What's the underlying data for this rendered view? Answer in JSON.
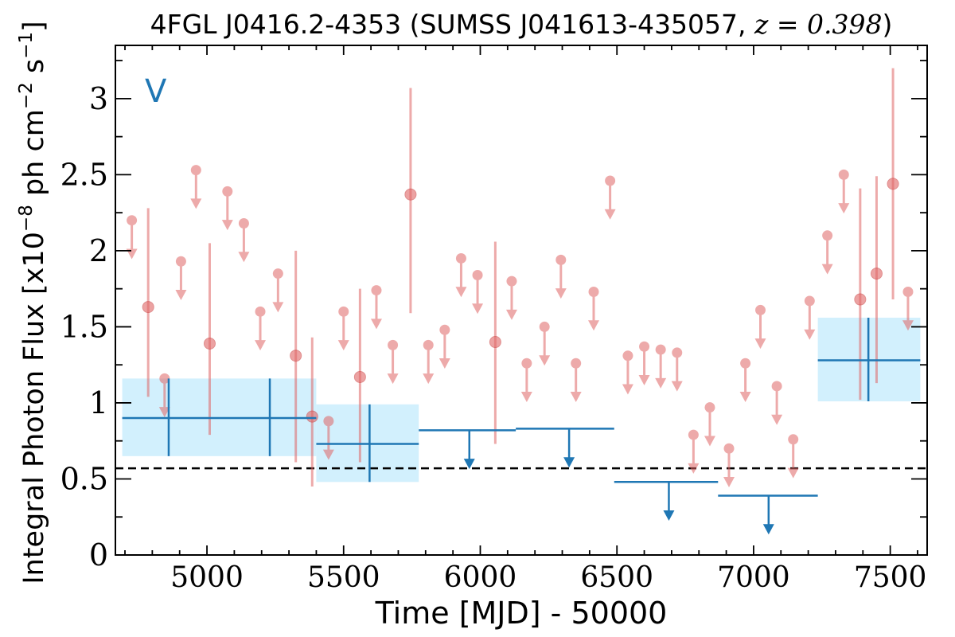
{
  "chart_data": {
    "type": "scatter",
    "title_main": "4FGL J0416.2-4353 (SUMSS J041613-435057, ",
    "title_z": "z = 0.398",
    "title_close": ")",
    "xlabel": "Time [MJD] - 50000",
    "ylabel_pre": "Integral Photon Flux [x10",
    "ylabel_exp1": "−8",
    "ylabel_mid": " ph cm",
    "ylabel_exp2": "−2",
    "ylabel_mid2": " s",
    "ylabel_exp3": "−1",
    "ylabel_post": "]",
    "annotation": "V",
    "xlim": [
      4665,
      7635
    ],
    "ylim": [
      0,
      3.35
    ],
    "xticks": [
      "5000",
      "5500",
      "6000",
      "6500",
      "7000",
      "7500"
    ],
    "yticks": [
      "0",
      "0.5",
      "1",
      "1.5",
      "2",
      "2.5",
      "3"
    ],
    "xtick_values": [
      5000,
      5500,
      6000,
      6500,
      7000,
      7500
    ],
    "ytick_values": [
      0,
      0.5,
      1,
      1.5,
      2,
      2.5,
      3
    ],
    "reference_level": 0.57,
    "colors": {
      "fine_points": "#e06666",
      "bins": "#1f77b4",
      "bin_fill": "#cdeefd",
      "reference": "#000000"
    },
    "fine_detections": [
      {
        "x": 4785,
        "y": 1.63,
        "lo": 1.04,
        "hi": 2.28
      },
      {
        "x": 5010,
        "y": 1.39,
        "lo": 0.79,
        "hi": 2.05
      },
      {
        "x": 5325,
        "y": 1.31,
        "lo": 0.61,
        "hi": 2.0
      },
      {
        "x": 5385,
        "y": 0.91,
        "lo": 0.45,
        "hi": 1.43
      },
      {
        "x": 5560,
        "y": 1.17,
        "lo": 0.61,
        "hi": 1.75
      },
      {
        "x": 5745,
        "y": 2.37,
        "lo": 1.59,
        "hi": 3.07
      },
      {
        "x": 6055,
        "y": 1.4,
        "lo": 0.73,
        "hi": 2.06
      },
      {
        "x": 7390,
        "y": 1.68,
        "lo": 1.02,
        "hi": 2.41
      },
      {
        "x": 7450,
        "y": 1.85,
        "lo": 1.13,
        "hi": 2.49
      },
      {
        "x": 7510,
        "y": 2.44,
        "lo": 1.68,
        "hi": 3.2
      }
    ],
    "fine_upper_limits": [
      {
        "x": 4725,
        "y": 2.2
      },
      {
        "x": 4845,
        "y": 1.16
      },
      {
        "x": 4905,
        "y": 1.93
      },
      {
        "x": 4960,
        "y": 2.53
      },
      {
        "x": 5075,
        "y": 2.39
      },
      {
        "x": 5135,
        "y": 2.18
      },
      {
        "x": 5195,
        "y": 1.6
      },
      {
        "x": 5260,
        "y": 1.85
      },
      {
        "x": 5445,
        "y": 0.88
      },
      {
        "x": 5500,
        "y": 1.6
      },
      {
        "x": 5620,
        "y": 1.74
      },
      {
        "x": 5680,
        "y": 1.38
      },
      {
        "x": 5810,
        "y": 1.38
      },
      {
        "x": 5870,
        "y": 1.48
      },
      {
        "x": 5930,
        "y": 1.95
      },
      {
        "x": 5990,
        "y": 1.84
      },
      {
        "x": 6115,
        "y": 1.8
      },
      {
        "x": 6170,
        "y": 1.26
      },
      {
        "x": 6235,
        "y": 1.5
      },
      {
        "x": 6295,
        "y": 1.94
      },
      {
        "x": 6350,
        "y": 1.26
      },
      {
        "x": 6415,
        "y": 1.73
      },
      {
        "x": 6475,
        "y": 2.46
      },
      {
        "x": 6540,
        "y": 1.31
      },
      {
        "x": 6600,
        "y": 1.37
      },
      {
        "x": 6660,
        "y": 1.35
      },
      {
        "x": 6720,
        "y": 1.33
      },
      {
        "x": 6780,
        "y": 0.79
      },
      {
        "x": 6840,
        "y": 0.97
      },
      {
        "x": 6910,
        "y": 0.7
      },
      {
        "x": 6970,
        "y": 1.26
      },
      {
        "x": 7025,
        "y": 1.61
      },
      {
        "x": 7085,
        "y": 1.11
      },
      {
        "x": 7145,
        "y": 0.76
      },
      {
        "x": 7205,
        "y": 1.67
      },
      {
        "x": 7270,
        "y": 2.1
      },
      {
        "x": 7330,
        "y": 2.5
      },
      {
        "x": 7565,
        "y": 1.73
      }
    ],
    "bin_detections": [
      {
        "x0": 4690,
        "x1": 5045,
        "x": 4860,
        "y": 0.9,
        "lo": 0.65,
        "hi": 1.16
      },
      {
        "x0": 5045,
        "x1": 5400,
        "x": 5230,
        "y": 0.9,
        "lo": 0.65,
        "hi": 1.16
      },
      {
        "x0": 5400,
        "x1": 5775,
        "x": 5595,
        "y": 0.73,
        "lo": 0.48,
        "hi": 0.99
      },
      {
        "x0": 7235,
        "x1": 7610,
        "x": 7420,
        "y": 1.28,
        "lo": 1.01,
        "hi": 1.56
      }
    ],
    "bin_upper_limits": [
      {
        "x0": 5775,
        "x1": 6130,
        "x": 5960,
        "y": 0.82
      },
      {
        "x0": 6130,
        "x1": 6490,
        "x": 6325,
        "y": 0.83
      },
      {
        "x0": 6490,
        "x1": 6870,
        "x": 6690,
        "y": 0.48
      },
      {
        "x0": 6870,
        "x1": 7235,
        "x": 7055,
        "y": 0.39
      }
    ]
  }
}
